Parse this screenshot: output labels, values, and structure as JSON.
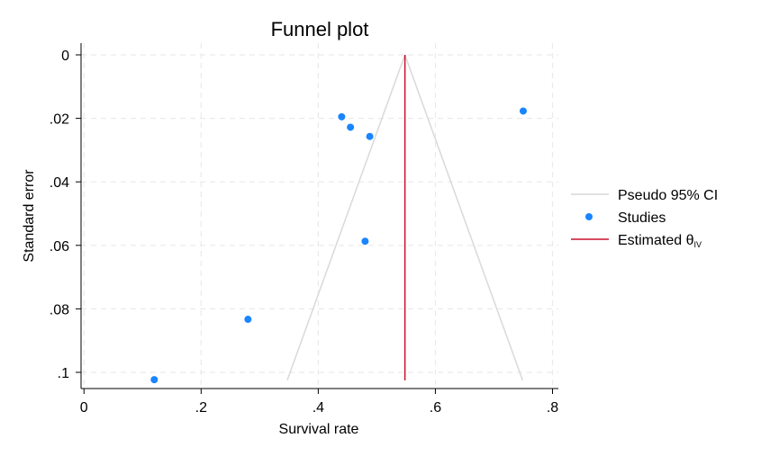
{
  "chart_data": {
    "type": "scatter",
    "title": "Funnel plot",
    "xlabel": "Survival rate",
    "ylabel": "Standard error",
    "xlim": [
      -0.005,
      0.81
    ],
    "ylim": [
      0,
      0.1025
    ],
    "y_reversed": true,
    "grid": true,
    "legend_position": "right",
    "x_ticks": [
      {
        "value": 0,
        "label": "0"
      },
      {
        "value": 0.2,
        "label": ".2"
      },
      {
        "value": 0.4,
        "label": ".4"
      },
      {
        "value": 0.6,
        "label": ".6"
      },
      {
        "value": 0.8,
        "label": ".8"
      }
    ],
    "y_ticks": [
      {
        "value": 0,
        "label": "0"
      },
      {
        "value": 0.02,
        "label": ".02"
      },
      {
        "value": 0.04,
        "label": ".04"
      },
      {
        "value": 0.06,
        "label": ".06"
      },
      {
        "value": 0.08,
        "label": ".08"
      },
      {
        "value": 0.1,
        "label": ".1"
      }
    ],
    "estimated_theta": 0.548,
    "pseudo_ci": {
      "apex": [
        0.548,
        0
      ],
      "left_base": [
        0.347,
        0.1025
      ],
      "right_base": [
        0.749,
        0.1025
      ]
    },
    "series": [
      {
        "name": "Studies",
        "color": "#1a85ff",
        "points": [
          {
            "x": 0.44,
            "y": 0.0195
          },
          {
            "x": 0.455,
            "y": 0.0228
          },
          {
            "x": 0.488,
            "y": 0.0257
          },
          {
            "x": 0.75,
            "y": 0.0177
          },
          {
            "x": 0.48,
            "y": 0.0587
          },
          {
            "x": 0.28,
            "y": 0.0833
          },
          {
            "x": 0.12,
            "y": 0.1023
          }
        ]
      }
    ],
    "legend": [
      {
        "label": "Pseudo 95% CI",
        "kind": "line",
        "color": "#d9d9d9"
      },
      {
        "label": "Studies",
        "kind": "marker",
        "color": "#1a85ff"
      },
      {
        "label": "Estimated θ",
        "subscript": "IV",
        "kind": "line",
        "color": "#c8102e"
      }
    ]
  }
}
